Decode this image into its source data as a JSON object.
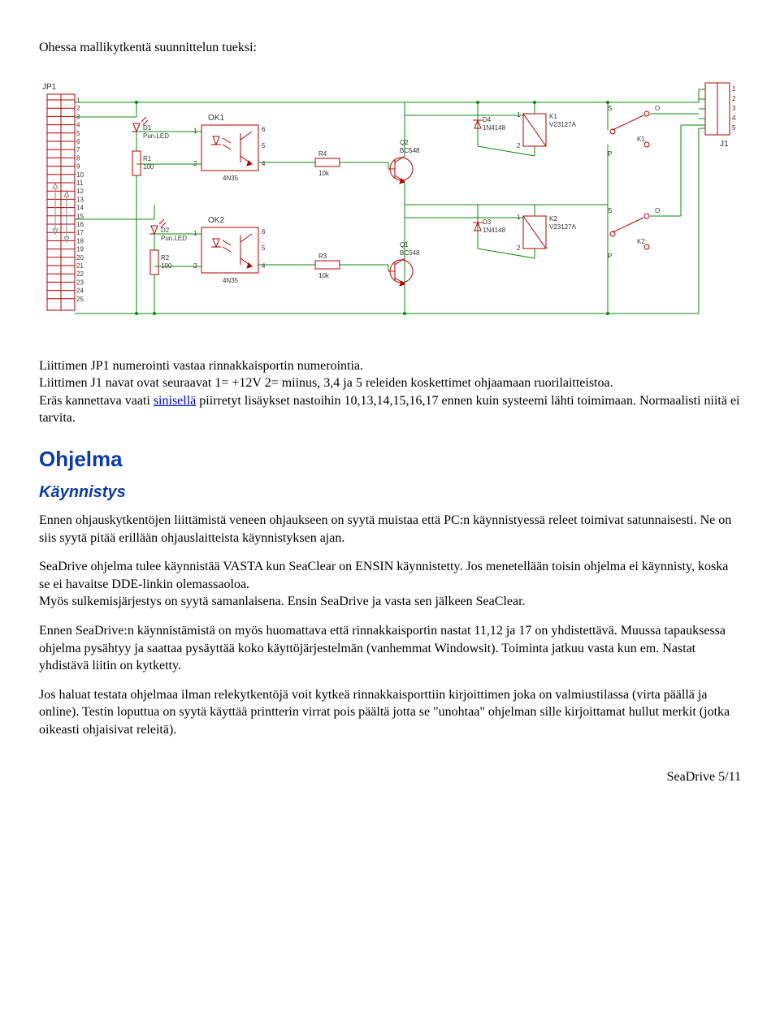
{
  "intro": "Ohessa mallikytkentä suunnittelun tueksi:",
  "schematic": {
    "jp1": {
      "name": "JP1",
      "pins": [
        "1",
        "2",
        "3",
        "4",
        "5",
        "6",
        "7",
        "8",
        "9",
        "10",
        "11",
        "12",
        "13",
        "14",
        "15",
        "16",
        "17",
        "18",
        "19",
        "20",
        "21",
        "22",
        "23",
        "24",
        "25"
      ]
    },
    "j1": {
      "name": "J1",
      "pins": [
        "1",
        "2",
        "3",
        "4",
        "5"
      ]
    },
    "led1": {
      "ref": "D1",
      "type": "Pun.LED"
    },
    "led2": {
      "ref": "D2",
      "type": "Pun.LED"
    },
    "r1": {
      "ref": "R1",
      "value": "100"
    },
    "r2": {
      "ref": "R2",
      "value": "100"
    },
    "ok1": {
      "ref": "OK1",
      "type": "4N35",
      "pins": [
        "1",
        "2",
        "4",
        "5",
        "6"
      ]
    },
    "ok2": {
      "ref": "OK2",
      "type": "4N35",
      "pins": [
        "1",
        "2",
        "4",
        "5",
        "6"
      ]
    },
    "r3": {
      "ref": "R3",
      "value": "10k"
    },
    "r4": {
      "ref": "R4",
      "value": "10k"
    },
    "q1": {
      "ref": "Q1",
      "type": "BC548"
    },
    "q2": {
      "ref": "Q2",
      "type": "BC548"
    },
    "d3": {
      "ref": "D3",
      "type": "1N4148"
    },
    "d4": {
      "ref": "D4",
      "type": "1N4148"
    },
    "k1coil": {
      "ref": "K1",
      "type": "V23127A",
      "pins": [
        "1",
        "2"
      ]
    },
    "k2coil": {
      "ref": "K2",
      "type": "V23127A",
      "pins": [
        "1",
        "2"
      ]
    },
    "k1sw": {
      "ref": "K1",
      "pins_top": "S",
      "pins_bot": "P",
      "pin_o": "O"
    },
    "k2sw": {
      "ref": "K2",
      "pins_top": "S",
      "pins_bot": "P",
      "pin_o": "O"
    },
    "colors": {
      "wire": "#0b8a0b",
      "component": "#b00000",
      "label": "#333333",
      "background": "#ffffff"
    }
  },
  "body": {
    "p1a": "Liittimen JP1 numerointi vastaa rinnakkaisportin numerointia.",
    "p1b": "Liittimen J1 navat ovat seuraavat  1= +12V 2= miinus, 3,4 ja 5 releiden koskettimet ohjaamaan ruorilaitteistoa.",
    "p1c_pre": "Eräs kannettava vaati ",
    "p1c_link": "sinisellä",
    "p1c_post": " piirretyt lisäykset nastoihin 10,13,14,15,16,17 ennen kuin systeemi lähti toimimaan. Normaalisti niitä ei tarvita."
  },
  "section": "Ohjelma",
  "subsection": "Käynnistys",
  "paras": {
    "p2": "Ennen ohjauskytkentöjen liittämistä veneen ohjaukseen on syytä muistaa että PC:n käynnistyessä releet toimivat satunnaisesti. Ne on siis syytä pitää erillään ohjauslaitteista käynnistyksen ajan.",
    "p3": "SeaDrive ohjelma tulee käynnistää VASTA kun SeaClear on ENSIN käynnistetty. Jos menetellään toisin ohjelma ei käynnisty, koska se ei havaitse DDE-linkin olemassaoloa.\nMyös sulkemisjärjestys on syytä samanlaisena. Ensin SeaDrive ja vasta sen jälkeen SeaClear.",
    "p4": "Ennen SeaDrive:n käynnistämistä on myös huomattava että rinnakkaisportin nastat 11,12 ja 17 on yhdistettävä. Muussa tapauksessa ohjelma pysähtyy ja saattaa pysäyttää koko käyttöjärjestelmän (vanhemmat Windowsit). Toiminta jatkuu vasta kun em. Nastat yhdistävä liitin on kytketty.",
    "p5": "Jos haluat testata ohjelmaa ilman relekytkentöjä voit kytkeä rinnakkaisporttiin kirjoittimen joka on valmiustilassa (virta päällä ja online). Testin loputtua on syytä käyttää printterin virrat pois päältä jotta se \"unohtaa\" ohjelman sille kirjoittamat hullut merkit (jotka oikeasti ohjaisivat releitä)."
  },
  "footer": "SeaDrive 5/11"
}
